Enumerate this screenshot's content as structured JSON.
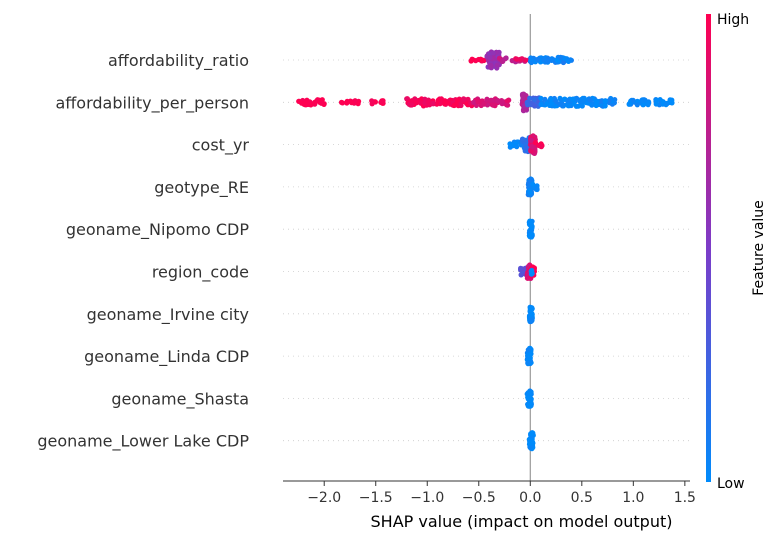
{
  "chart_data": {
    "type": "scatter",
    "subtype": "shap-beeswarm",
    "xlabel": "SHAP value (impact on model output)",
    "xlim": [
      -2.4,
      1.55
    ],
    "x_ticks": [
      -2.0,
      -1.5,
      -1.0,
      -0.5,
      0.0,
      0.5,
      1.0,
      1.5
    ],
    "x_tick_labels": [
      "−2.0",
      "−1.5",
      "−1.0",
      "−0.5",
      "0.0",
      "0.5",
      "1.0",
      "1.5"
    ],
    "zero_line": 0,
    "colorbar": {
      "label": "Feature value",
      "high_label": "High",
      "low_label": "Low",
      "colors": {
        "low": "#008bfb",
        "mid": "#7c3cc8",
        "high": "#ff0051"
      }
    },
    "features": [
      {
        "name": "affordability_ratio",
        "clusters": [
          {
            "range": [
              -0.6,
              -0.45
            ],
            "feature_value": 1.0,
            "spread": 0.15,
            "count": 10
          },
          {
            "range": [
              -0.42,
              -0.3
            ],
            "feature_value": 0.6,
            "spread": 0.9,
            "count": 80
          },
          {
            "range": [
              -0.3,
              -0.05
            ],
            "feature_value": 0.75,
            "spread": 0.25,
            "count": 20
          },
          {
            "range": [
              -0.15,
              0.0
            ],
            "feature_value": 0.9,
            "spread": 0.15,
            "count": 8
          },
          {
            "range": [
              0.0,
              0.35
            ],
            "feature_value": 0.05,
            "spread": 0.3,
            "count": 50
          },
          {
            "range": [
              0.35,
              0.4
            ],
            "feature_value": 0.05,
            "spread": 0.2,
            "count": 4
          }
        ]
      },
      {
        "name": "affordability_per_person",
        "clusters": [
          {
            "range": [
              -2.25,
              -2.0
            ],
            "feature_value": 1.0,
            "spread": 0.3,
            "count": 30
          },
          {
            "range": [
              -1.85,
              -1.65
            ],
            "feature_value": 1.0,
            "spread": 0.2,
            "count": 12
          },
          {
            "range": [
              -1.55,
              -1.42
            ],
            "feature_value": 1.0,
            "spread": 0.2,
            "count": 10
          },
          {
            "range": [
              -1.2,
              -0.55
            ],
            "feature_value": 0.97,
            "spread": 0.4,
            "count": 90
          },
          {
            "range": [
              -0.55,
              -0.2
            ],
            "feature_value": 0.85,
            "spread": 0.4,
            "count": 50
          },
          {
            "range": [
              -0.08,
              -0.03
            ],
            "feature_value": 0.7,
            "spread": 1.0,
            "count": 30
          },
          {
            "range": [
              -0.03,
              0.1
            ],
            "feature_value": 0.25,
            "spread": 0.5,
            "count": 20
          },
          {
            "range": [
              0.1,
              0.82
            ],
            "feature_value": 0.03,
            "spread": 0.45,
            "count": 110
          },
          {
            "range": [
              0.95,
              1.15
            ],
            "feature_value": 0.02,
            "spread": 0.3,
            "count": 25
          },
          {
            "range": [
              1.2,
              1.38
            ],
            "feature_value": 0.02,
            "spread": 0.3,
            "count": 25
          }
        ]
      },
      {
        "name": "cost_yr",
        "clusters": [
          {
            "range": [
              -0.2,
              -0.08
            ],
            "feature_value": 0.0,
            "spread": 0.3,
            "count": 12
          },
          {
            "range": [
              -0.08,
              0.0
            ],
            "feature_value": 0.15,
            "spread": 0.8,
            "count": 25
          },
          {
            "range": [
              0.0,
              0.05
            ],
            "feature_value": 0.85,
            "spread": 1.0,
            "count": 40
          },
          {
            "range": [
              0.05,
              0.12
            ],
            "feature_value": 1.0,
            "spread": 0.3,
            "count": 10
          }
        ]
      },
      {
        "name": "geotype_RE",
        "clusters": [
          {
            "range": [
              -0.02,
              0.02
            ],
            "feature_value": 0.05,
            "spread": 0.9,
            "count": 40
          },
          {
            "range": [
              0.02,
              0.08
            ],
            "feature_value": 0.0,
            "spread": 0.3,
            "count": 8
          }
        ]
      },
      {
        "name": "geoname_Nipomo CDP",
        "clusters": [
          {
            "range": [
              -0.01,
              0.02
            ],
            "feature_value": 0.0,
            "spread": 0.9,
            "count": 40
          }
        ]
      },
      {
        "name": "region_code",
        "clusters": [
          {
            "range": [
              -0.1,
              -0.03
            ],
            "feature_value": 0.35,
            "spread": 0.4,
            "count": 15
          },
          {
            "range": [
              -0.03,
              0.01
            ],
            "feature_value": 0.85,
            "spread": 0.8,
            "count": 30
          },
          {
            "range": [
              0.0,
              0.04
            ],
            "feature_value": 1.0,
            "spread": 0.5,
            "count": 20
          },
          {
            "range": [
              -0.01,
              0.02
            ],
            "feature_value": 0.0,
            "spread": 0.3,
            "count": 6,
            "offset": 0.35
          }
        ]
      },
      {
        "name": "geoname_Irvine city",
        "clusters": [
          {
            "range": [
              -0.01,
              0.02
            ],
            "feature_value": 0.0,
            "spread": 0.9,
            "count": 40
          }
        ]
      },
      {
        "name": "geoname_Linda CDP",
        "clusters": [
          {
            "range": [
              -0.03,
              0.01
            ],
            "feature_value": 0.0,
            "spread": 0.9,
            "count": 40
          }
        ]
      },
      {
        "name": "geoname_Shasta",
        "clusters": [
          {
            "range": [
              -0.03,
              0.01
            ],
            "feature_value": 0.0,
            "spread": 0.9,
            "count": 40
          }
        ]
      },
      {
        "name": "geoname_Lower Lake CDP",
        "clusters": [
          {
            "range": [
              -0.01,
              0.03
            ],
            "feature_value": 0.0,
            "spread": 0.9,
            "count": 40
          }
        ]
      }
    ]
  }
}
